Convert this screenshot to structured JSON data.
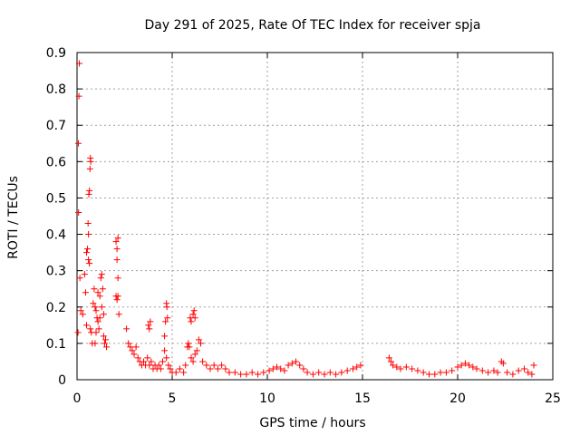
{
  "chart_data": {
    "type": "scatter",
    "title": "Day 291 of 2025, Rate Of TEC Index for receiver spja",
    "xlabel": "GPS time / hours",
    "ylabel": "ROTI / TECUs",
    "xlim": [
      0,
      25
    ],
    "ylim": [
      0,
      0.9
    ],
    "xticks": [
      0,
      5,
      10,
      15,
      20,
      25
    ],
    "yticks": [
      0,
      0.1,
      0.2,
      0.3,
      0.4,
      0.5,
      0.6,
      0.7,
      0.8,
      0.9
    ],
    "xtick_labels": [
      "0",
      "5",
      "10",
      "15",
      "20",
      "25"
    ],
    "ytick_labels": [
      "0",
      "0.1",
      "0.2",
      "0.3",
      "0.4",
      "0.5",
      "0.6",
      "0.7",
      "0.8",
      "0.9"
    ],
    "grid": true,
    "marker": "plus",
    "color": "#ff0000",
    "series": [
      {
        "points": [
          [
            0.05,
            0.13
          ],
          [
            0.07,
            0.65
          ],
          [
            0.08,
            0.46
          ],
          [
            0.1,
            0.78
          ],
          [
            0.12,
            0.87
          ],
          [
            0.15,
            0.28
          ],
          [
            0.2,
            0.19
          ],
          [
            0.3,
            0.18
          ],
          [
            0.4,
            0.29
          ],
          [
            0.45,
            0.24
          ],
          [
            0.5,
            0.35
          ],
          [
            0.55,
            0.36
          ],
          [
            0.58,
            0.43
          ],
          [
            0.6,
            0.4
          ],
          [
            0.62,
            0.51
          ],
          [
            0.65,
            0.52
          ],
          [
            0.68,
            0.58
          ],
          [
            0.7,
            0.61
          ],
          [
            0.72,
            0.6
          ],
          [
            0.6,
            0.33
          ],
          [
            0.65,
            0.32
          ],
          [
            0.5,
            0.15
          ],
          [
            0.7,
            0.14
          ],
          [
            0.75,
            0.13
          ],
          [
            0.8,
            0.1
          ],
          [
            0.85,
            0.21
          ],
          [
            0.9,
            0.25
          ],
          [
            0.95,
            0.2
          ],
          [
            1.0,
            0.19
          ],
          [
            1.05,
            0.17
          ],
          [
            1.1,
            0.16
          ],
          [
            1.0,
            0.13
          ],
          [
            1.1,
            0.24
          ],
          [
            1.2,
            0.23
          ],
          [
            1.25,
            0.28
          ],
          [
            1.3,
            0.29
          ],
          [
            1.35,
            0.25
          ],
          [
            1.4,
            0.12
          ],
          [
            1.45,
            0.1
          ],
          [
            1.5,
            0.11
          ],
          [
            1.55,
            0.09
          ],
          [
            1.3,
            0.2
          ],
          [
            1.2,
            0.17
          ],
          [
            1.15,
            0.14
          ],
          [
            0.95,
            0.1
          ],
          [
            1.4,
            0.18
          ],
          [
            2.05,
            0.38
          ],
          [
            2.1,
            0.36
          ],
          [
            2.15,
            0.39
          ],
          [
            2.1,
            0.33
          ],
          [
            2.15,
            0.28
          ],
          [
            2.05,
            0.23
          ],
          [
            2.1,
            0.22
          ],
          [
            2.15,
            0.23
          ],
          [
            2.2,
            0.18
          ],
          [
            2.6,
            0.14
          ],
          [
            2.7,
            0.1
          ],
          [
            2.8,
            0.09
          ],
          [
            2.9,
            0.08
          ],
          [
            3.0,
            0.07
          ],
          [
            3.1,
            0.09
          ],
          [
            3.2,
            0.06
          ],
          [
            3.3,
            0.05
          ],
          [
            3.4,
            0.04
          ],
          [
            3.5,
            0.05
          ],
          [
            3.6,
            0.04
          ],
          [
            3.7,
            0.06
          ],
          [
            3.8,
            0.04
          ],
          [
            3.9,
            0.05
          ],
          [
            3.75,
            0.15
          ],
          [
            3.8,
            0.14
          ],
          [
            3.85,
            0.16
          ],
          [
            4.0,
            0.03
          ],
          [
            4.1,
            0.04
          ],
          [
            4.2,
            0.03
          ],
          [
            4.3,
            0.04
          ],
          [
            4.4,
            0.03
          ],
          [
            4.5,
            0.05
          ],
          [
            4.6,
            0.12
          ],
          [
            4.65,
            0.16
          ],
          [
            4.7,
            0.21
          ],
          [
            4.72,
            0.2
          ],
          [
            4.75,
            0.17
          ],
          [
            4.6,
            0.08
          ],
          [
            4.7,
            0.06
          ],
          [
            4.8,
            0.04
          ],
          [
            4.9,
            0.03
          ],
          [
            5.0,
            0.02
          ],
          [
            5.2,
            0.02
          ],
          [
            5.4,
            0.03
          ],
          [
            5.6,
            0.02
          ],
          [
            5.7,
            0.04
          ],
          [
            5.8,
            0.09
          ],
          [
            5.85,
            0.1
          ],
          [
            5.9,
            0.09
          ],
          [
            5.95,
            0.17
          ],
          [
            6.0,
            0.16
          ],
          [
            6.1,
            0.18
          ],
          [
            6.15,
            0.19
          ],
          [
            6.2,
            0.17
          ],
          [
            6.0,
            0.06
          ],
          [
            6.1,
            0.05
          ],
          [
            6.2,
            0.07
          ],
          [
            6.3,
            0.08
          ],
          [
            6.4,
            0.11
          ],
          [
            6.5,
            0.1
          ],
          [
            6.6,
            0.05
          ],
          [
            6.8,
            0.04
          ],
          [
            7.0,
            0.03
          ],
          [
            7.2,
            0.04
          ],
          [
            7.4,
            0.03
          ],
          [
            7.6,
            0.04
          ],
          [
            7.8,
            0.03
          ],
          [
            8.0,
            0.02
          ],
          [
            8.3,
            0.02
          ],
          [
            8.6,
            0.015
          ],
          [
            8.9,
            0.015
          ],
          [
            9.2,
            0.02
          ],
          [
            9.5,
            0.015
          ],
          [
            9.8,
            0.02
          ],
          [
            10.1,
            0.025
          ],
          [
            10.3,
            0.03
          ],
          [
            10.5,
            0.035
          ],
          [
            10.7,
            0.03
          ],
          [
            10.9,
            0.025
          ],
          [
            11.1,
            0.04
          ],
          [
            11.3,
            0.045
          ],
          [
            11.5,
            0.05
          ],
          [
            11.7,
            0.04
          ],
          [
            11.9,
            0.03
          ],
          [
            12.1,
            0.02
          ],
          [
            12.4,
            0.015
          ],
          [
            12.7,
            0.02
          ],
          [
            13.0,
            0.015
          ],
          [
            13.3,
            0.02
          ],
          [
            13.6,
            0.015
          ],
          [
            13.9,
            0.02
          ],
          [
            14.2,
            0.025
          ],
          [
            14.5,
            0.03
          ],
          [
            14.7,
            0.035
          ],
          [
            14.9,
            0.04
          ],
          [
            16.4,
            0.06
          ],
          [
            16.5,
            0.05
          ],
          [
            16.6,
            0.04
          ],
          [
            16.8,
            0.035
          ],
          [
            17.0,
            0.03
          ],
          [
            17.3,
            0.035
          ],
          [
            17.6,
            0.03
          ],
          [
            17.9,
            0.025
          ],
          [
            18.2,
            0.02
          ],
          [
            18.5,
            0.015
          ],
          [
            18.8,
            0.015
          ],
          [
            19.1,
            0.02
          ],
          [
            19.4,
            0.02
          ],
          [
            19.7,
            0.025
          ],
          [
            20.0,
            0.035
          ],
          [
            20.2,
            0.04
          ],
          [
            20.4,
            0.045
          ],
          [
            20.6,
            0.04
          ],
          [
            20.8,
            0.035
          ],
          [
            21.0,
            0.03
          ],
          [
            21.3,
            0.025
          ],
          [
            21.6,
            0.02
          ],
          [
            21.9,
            0.025
          ],
          [
            22.1,
            0.02
          ],
          [
            22.3,
            0.05
          ],
          [
            22.4,
            0.045
          ],
          [
            22.6,
            0.02
          ],
          [
            22.9,
            0.015
          ],
          [
            23.2,
            0.025
          ],
          [
            23.5,
            0.03
          ],
          [
            23.7,
            0.02
          ],
          [
            23.9,
            0.015
          ],
          [
            24.0,
            0.04
          ]
        ]
      }
    ]
  }
}
